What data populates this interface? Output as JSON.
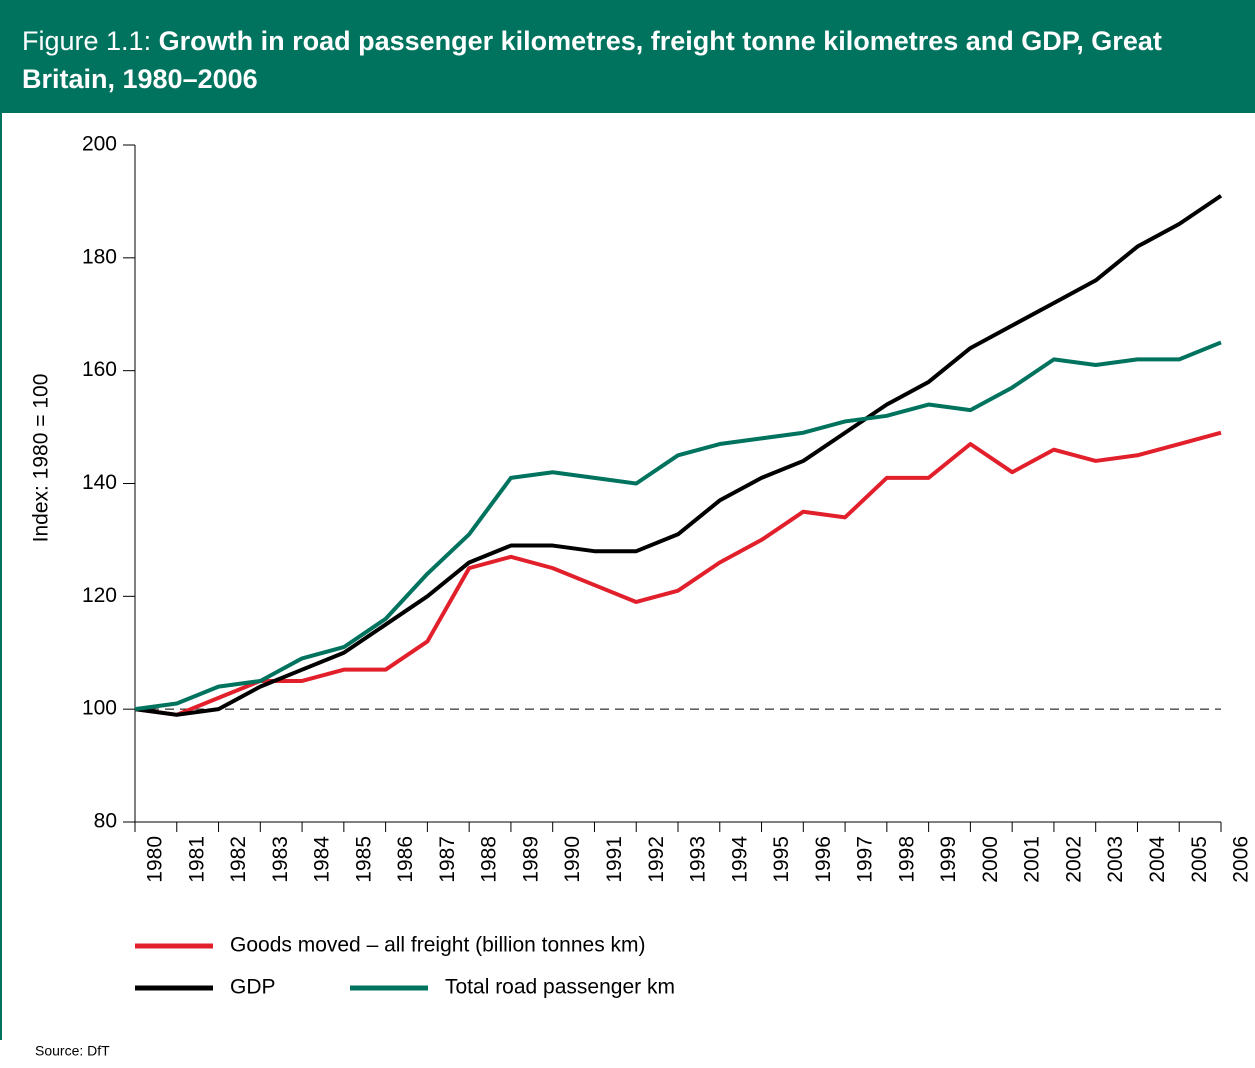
{
  "chart_data": {
    "type": "line",
    "title_prefix": "Figure 1.1:",
    "title": "Growth in road passenger kilometres, freight tonne kilometres and GDP, Great Britain, 1980–2006",
    "y_label": "Index: 1980 = 100",
    "source": "Source: DfT",
    "categories": [
      "1980",
      "1981",
      "1982",
      "1983",
      "1984",
      "1985",
      "1986",
      "1987",
      "1988",
      "1989",
      "1990",
      "1991",
      "1992",
      "1993",
      "1994",
      "1995",
      "1996",
      "1997",
      "1998",
      "1999",
      "2000",
      "2001",
      "2002",
      "2003",
      "2004",
      "2005",
      "2006"
    ],
    "series": [
      {
        "name": "Goods moved – all freight (billion tonnes km)",
        "color": "#e2202c",
        "values": [
          100,
          99,
          102,
          105,
          105,
          107,
          107,
          112,
          125,
          127,
          125,
          122,
          119,
          121,
          126,
          130,
          135,
          134,
          141,
          141,
          147,
          142,
          146,
          144,
          145,
          147,
          149
        ]
      },
      {
        "name": "GDP",
        "color": "#000000",
        "values": [
          100,
          99,
          100,
          104,
          107,
          110,
          115,
          120,
          126,
          129,
          129,
          128,
          128,
          131,
          137,
          141,
          144,
          149,
          154,
          158,
          164,
          168,
          172,
          176,
          182,
          186,
          191
        ]
      },
      {
        "name": "Total road passenger km",
        "color": "#00735f",
        "values": [
          100,
          101,
          104,
          105,
          109,
          111,
          116,
          124,
          131,
          141,
          142,
          141,
          140,
          145,
          147,
          148,
          149,
          151,
          152,
          154,
          153,
          157,
          162,
          161,
          162,
          162,
          165
        ]
      }
    ],
    "reference_line": 100,
    "ylim": [
      80,
      200
    ],
    "yticks": [
      80,
      100,
      120,
      140,
      160,
      180,
      200
    ]
  }
}
